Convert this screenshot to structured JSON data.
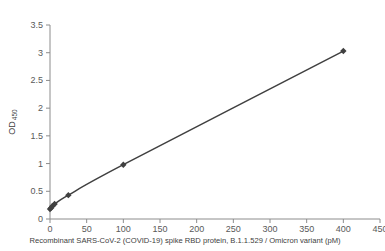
{
  "chart_data": {
    "type": "line",
    "x_label": "Recombinant SARS-CoV-2  (COVID-19) spike RBD protein, B.1.1.529 / Omicron variant (pM)",
    "y_label": "OD 450",
    "x": [
      0,
      1.56,
      3.13,
      6.25,
      25,
      100,
      400
    ],
    "values": [
      0.18,
      0.2,
      0.23,
      0.27,
      0.43,
      0.98,
      3.03
    ],
    "color": "#404040",
    "marker": "diamond",
    "xlim": [
      0,
      450
    ],
    "xticks": [
      0,
      50,
      100,
      150,
      200,
      250,
      300,
      350,
      400,
      450
    ],
    "ylim": [
      0,
      3.5
    ],
    "yticks": [
      0,
      0.5,
      1,
      1.5,
      2,
      2.5,
      3,
      3.5
    ],
    "grid": false
  }
}
